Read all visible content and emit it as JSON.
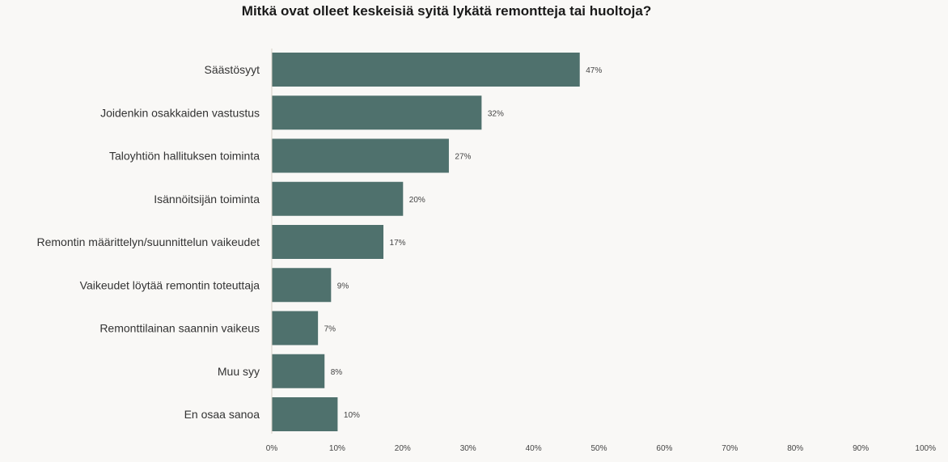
{
  "chart_data": {
    "type": "bar",
    "orientation": "horizontal",
    "title": "Mitkä ovat olleet keskeisiä syitä lykätä remontteja tai huoltoja?",
    "xlabel": "",
    "ylabel": "",
    "xlim": [
      0,
      100
    ],
    "grid": false,
    "bar_color": "#4f716d",
    "categories": [
      "Säästösyyt",
      "Joidenkin osakkaiden vastustus",
      "Taloyhtiön hallituksen toiminta",
      "Isännöitsijän toiminta",
      "Remontin määrittelyn/suunnittelun vaikeudet",
      "Vaikeudet löytää remontin toteuttaja",
      "Remonttilainan saannin vaikeus",
      "Muu syy",
      "En osaa sanoa"
    ],
    "values": [
      47,
      32,
      27,
      20,
      17,
      9,
      7,
      8,
      10
    ],
    "value_labels": [
      "47%",
      "32%",
      "27%",
      "20%",
      "17%",
      "9%",
      "7%",
      "8%",
      "10%"
    ],
    "ticks": [
      0,
      10,
      20,
      30,
      40,
      50,
      60,
      70,
      80,
      90,
      100
    ],
    "tick_labels": [
      "0%",
      "10%",
      "20%",
      "30%",
      "40%",
      "50%",
      "60%",
      "70%",
      "80%",
      "90%",
      "100%"
    ]
  }
}
